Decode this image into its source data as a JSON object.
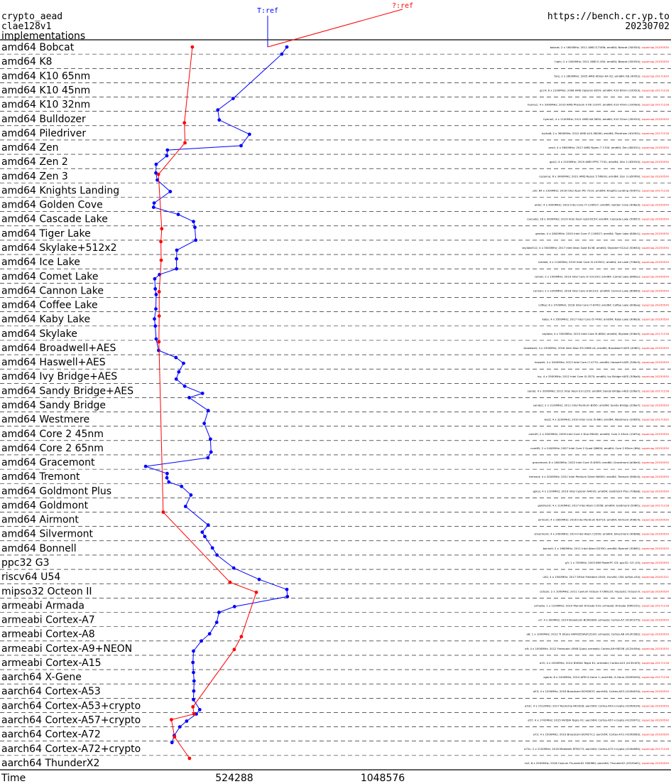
{
  "header": {
    "left_lines": [
      "crypto_aead",
      "clae128v1",
      "implementations"
    ],
    "right_lines": [
      "https://bench.cr.yp.to",
      "20230702"
    ],
    "marker_blue": "T:ref",
    "marker_red": "?:ref"
  },
  "colors": {
    "series_t": "#0000ff",
    "series_q": "#ff0000",
    "grid": "#000000",
    "text": "#000000"
  },
  "chart_data": {
    "type": "line",
    "orientation": "horizontal",
    "xlabel": "Time",
    "xticks": [
      {
        "value": 524288,
        "label": "524288"
      },
      {
        "value": 1048576,
        "label": "1048576"
      }
    ],
    "categories": [
      "amd64 Bobcat",
      "amd64 K8",
      "amd64 K10 65nm",
      "amd64 K10 45nm",
      "amd64 K10 32nm",
      "amd64 Bulldozer",
      "amd64 Piledriver",
      "amd64 Zen",
      "amd64 Zen 2",
      "amd64 Zen 3",
      "amd64 Knights Landing",
      "amd64 Golden Cove",
      "amd64 Cascade Lake",
      "amd64 Tiger Lake",
      "amd64 Skylake+512x2",
      "amd64 Ice Lake",
      "amd64 Comet Lake",
      "amd64 Cannon Lake",
      "amd64 Coffee Lake",
      "amd64 Kaby Lake",
      "amd64 Skylake",
      "amd64 Broadwell+AES",
      "amd64 Haswell+AES",
      "amd64 Ivy Bridge+AES",
      "amd64 Sandy Bridge+AES",
      "amd64 Sandy Bridge",
      "amd64 Westmere",
      "amd64 Core 2 45nm",
      "amd64 Core 2 65nm",
      "amd64 Gracemont",
      "amd64 Tremont",
      "amd64 Goldmont Plus",
      "amd64 Goldmont",
      "amd64 Airmont",
      "amd64 Silvermont",
      "amd64 Bonnell",
      "ppc32 G3",
      "riscv64 U54",
      "mipso32 Octeon II",
      "armeabi Armada",
      "armeabi Cortex-A7",
      "armeabi Cortex-A8",
      "armeabi Cortex-A9+NEON",
      "armeabi Cortex-A15",
      "aarch64 X-Gene",
      "aarch64 Cortex-A53",
      "aarch64 Cortex-A53+crypto",
      "aarch64 Cortex-A57+crypto",
      "aarch64 Cortex-A72",
      "aarch64 Cortex-A72+crypto",
      "aarch64 ThunderX2"
    ],
    "series": [
      {
        "name": "T:ref",
        "color": "#0000ff",
        "points": [
          [
            0,
            0.0,
            710000
          ],
          [
            0.5,
            0.0,
            692000
          ],
          [
            3.5,
            0.1,
            520000
          ],
          [
            4.4,
            0.0,
            466000
          ],
          [
            5.1,
            0.0,
            471000
          ],
          [
            5.9,
            0.2,
            578000
          ],
          [
            6.9,
            0.0,
            548000
          ],
          [
            7.2,
            0.0,
            288000
          ],
          [
            7.6,
            0.0,
            286000
          ],
          [
            8.2,
            0.0,
            248000
          ],
          [
            8.8,
            0.0,
            247000
          ],
          [
            9.3,
            0.0,
            252000
          ],
          [
            10.1,
            0.0,
            298000
          ],
          [
            10.9,
            0.0,
            241000
          ],
          [
            11.2,
            0.0,
            239000
          ],
          [
            11.7,
            0.0,
            326000
          ],
          [
            12.2,
            0.0,
            380000
          ],
          [
            12.6,
            0.0,
            385000
          ],
          [
            13.5,
            0.0,
            388000
          ],
          [
            14.2,
            0.0,
            321000
          ],
          [
            14.8,
            0.0,
            320000
          ],
          [
            15.5,
            0.0,
            320000
          ],
          [
            15.9,
            0.0,
            260000
          ],
          [
            16.2,
            0.0,
            243000
          ],
          [
            16.9,
            0.0,
            245000
          ],
          [
            17.3,
            0.0,
            248000
          ],
          [
            18.3,
            0.0,
            247000
          ],
          [
            19.0,
            0.0,
            242000
          ],
          [
            19.5,
            0.0,
            245000
          ],
          [
            20.4,
            0.0,
            248000
          ],
          [
            21.2,
            0.0,
            257000
          ],
          [
            21.7,
            0.0,
            318000
          ],
          [
            22.1,
            0.0,
            345000
          ],
          [
            22.7,
            0.0,
            328000
          ],
          [
            23.2,
            0.0,
            319000
          ],
          [
            23.7,
            0.0,
            349000
          ],
          [
            24.2,
            0.0,
            412000
          ],
          [
            24.5,
            0.0,
            365000
          ],
          [
            25.4,
            0.0,
            432000
          ],
          [
            26.3,
            0.0,
            418000
          ],
          [
            27.4,
            0.0,
            440000
          ],
          [
            28.3,
            0.0,
            442000
          ],
          [
            28.7,
            0.0,
            431000
          ],
          [
            29.3,
            0.0,
            211000
          ],
          [
            29.8,
            0.0,
            287000
          ],
          [
            30.1,
            0.0,
            286000
          ],
          [
            30.4,
            0.0,
            293000
          ],
          [
            30.7,
            0.0,
            338000
          ],
          [
            31.3,
            0.0,
            371000
          ],
          [
            32.1,
            0.0,
            352000
          ],
          [
            33.4,
            0.0,
            432000
          ],
          [
            33.9,
            0.0,
            411000
          ],
          [
            34.2,
            0.0,
            420000
          ],
          [
            35.0,
            0.0,
            447000
          ],
          [
            35.5,
            0.0,
            463000
          ],
          [
            36.4,
            0.0,
            522000
          ],
          [
            37.2,
            0.0,
            612000
          ],
          [
            37.9,
            0.0,
            710000
          ],
          [
            38.4,
            0.0,
            712000
          ],
          [
            39.1,
            0.0,
            525000
          ],
          [
            39.5,
            0.0,
            470000
          ],
          [
            40.2,
            0.0,
            462000
          ],
          [
            41.0,
            0.0,
            437000
          ],
          [
            41.5,
            0.0,
            408000
          ],
          [
            42.2,
            0.0,
            380000
          ],
          [
            43.0,
            0.0,
            378000
          ],
          [
            43.7,
            0.0,
            380000
          ],
          [
            44.3,
            0.0,
            382000
          ],
          [
            45.0,
            0.0,
            381000
          ],
          [
            45.6,
            0.0,
            380000
          ],
          [
            46.3,
            0.0,
            402000
          ],
          [
            46.6,
            0.0,
            390000
          ],
          [
            47.1,
            0.0,
            356000
          ],
          [
            47.5,
            0.0,
            332000
          ],
          [
            48.1,
            0.0,
            312000
          ],
          [
            48.6,
            0.0,
            304000
          ]
        ]
      },
      {
        "name": "?:ref",
        "color": "#ff0000",
        "points": [
          [
            0,
            0.0,
            376000
          ],
          [
            5.3,
            0.0,
            348000
          ],
          [
            6.7,
            0.0,
            350000
          ],
          [
            8.9,
            0.0,
            256000
          ],
          [
            12.7,
            0.0,
            268000
          ],
          [
            13.6,
            0.0,
            265000
          ],
          [
            14.9,
            0.0,
            266000
          ],
          [
            17.1,
            0.0,
            259000
          ],
          [
            18.8,
            0.0,
            259000
          ],
          [
            20.6,
            0.0,
            258000
          ],
          [
            32.5,
            0.0,
            273000
          ],
          [
            37.4,
            0.0,
            509000
          ],
          [
            38.1,
            0.0,
            602000
          ],
          [
            41.2,
            0.0,
            549000
          ],
          [
            42.1,
            0.0,
            524000
          ],
          [
            46.1,
            0.0,
            378000
          ],
          [
            46.6,
            0.0,
            382000
          ],
          [
            47.0,
            0.0,
            302000
          ],
          [
            48.2,
            0.0,
            313000
          ],
          [
            49.7,
            0.0,
            366000
          ]
        ]
      }
    ],
    "row_notes": [
      "bobcat; 2 x 1600MHz; 2011 AMD G-T40N; amd64; Bobcat (500f20); supercop-20230530",
      "hiphi; 2 x 1000MHz; 2011 AMD E-450; amd64; Bobcat (500f20); supercop-20230530",
      "fore; 2 x 2600MHz; 2005 AMD Athlon 64 X2; amd64; K8 (40f32); supercop-20171020",
      "gcc4; 6 x 2100MHz; 2008 AMD Opteron 8354; amd64; K10 65nm (100f23); supercop-20171218",
      "hyena1; 4 x 3300MHz; 2010 AMD Phenom II X6 1100T; amd64; K10 45nm (100fa0); supercop-20171218",
      "hyena2; 4 x 1100MHz; 2011 AMD A6-3650; amd64; K10 32nm (300f10); supercop-20230530",
      "hydra8; 2 x 3600MHz; 2012 AMD A10-5800K; amd64; Piledriver (610f01); supercop-20171218",
      "zen4; 4 x 3600MHz; 2017 AMD Ryzen 7 1700; amd64; Zen (800f11); supercop-20230530",
      "gpu2; 4 x 2100MHz; 2019 AMD EPYC 7742; amd64; Zen 2 (830f10); supercop-20230530",
      "cezanne; 6 x 3400MHz; 2021 AMD Ryzen 5 5600G; amd64; Zen 3 (a50f00); supercop-20230530",
      "phi; 64 x 1300MHz; 2016 Intel Xeon Phi 7210; amd64; Knights Landing (50671); supercop-20171218",
      "alder; 4 x 3000MHz; 2022 Intel Core i7-1165G7; amd64; Golden Cove (906a3); supercop-20230530",
      "cascade; 18 x 3000MHz; 2019 Intel Xeon Gold 6154; amd64; Cascade Lake (50657); supercop-20230530",
      "gardon; 4 x 2800MHz; 2020 Intel Core i7-1165G7; amd64; Tiger Lake (806c1); supercop-20230530",
      "skylake512; 4 x 3000MHz; 2017 Intel Xeon Gold 6136; amd64; Skylake+512x2 (50654); supercop-20230530",
      "icelake; 4 x 1100MHz; 2019 Intel Core i5-1035G1; amd64; Ice Lake (706e5); supercop-20230530",
      "comet; 2 x 1500MHz; 2019 Intel Core i3-10110U; amd64; Comet Lake (806ec); supercop-20230530",
      "cannon; 2 x 2200MHz; 2018 Intel Core i3-8121U; amd64; Cannon Lake (60663); supercop-20230530",
      "coffee; 6 x 3700MHz; 2018 Intel Core i7-8700; amd64; Coffee Lake (906ea); supercop-20230530",
      "kaby; 4 x 3500MHz; 2017 Intel Core i5-7400; amd64; Kaby Lake (906e9); supercop-20230530",
      "skylake; 4 x 3300MHz; 2015 Intel Core i5-6600; amd64; Skylake (506e3); supercop-20171218",
      "broadwell; 4 x 2300MHz; 2016 Intel Xeon E5-2698 v4; amd64; Broadwell+AES (406f1); supercop-20230530",
      "haswell; 4 x 3400MHz; 2013 Intel Core i7-4770; amd64; Haswell+AES (306c3); supercop-20230530",
      "ivy; 4 x 3500MHz; 2012 Intel Core i5-3570; amd64; Ivy Bridge+AES (306a9); supercop-20230530",
      "sandy; 4 x 3300MHz; 2011 Intel Xeon E3-1220; amd64; Sandy Bridge+AES (206a7); supercop-20171218",
      "sandy2; 2 x 2100MHz; 2011 Intel Pentium B950; amd64; Sandy Bridge (206a7); supercop-20230530",
      "west; 4 x 3200MHz; 2010 Intel Core i5-660; amd64; Westmere (20655); supercop-20171020",
      "core45; 2 x 3000MHz; 2009 Intel Core 2 Duo E8400; amd64; Core 2 45nm (1067a); supercop-20230530",
      "core65; 2 x 2400MHz; 2007 Intel Core 2 Quad Q6600; amd64; Core 2 65nm (6fb); supercop-20230530",
      "gracemont; 8 x 1800MHz; 2022 Intel Core i3-N305; amd64; Gracemont (b06e0); supercop-20230530",
      "tremont; 4 x 2000MHz; 2021 Intel Pentium Silver N6000; amd64; Tremont (906c0); supercop-20230530",
      "gplus; 4 x 1100MHz; 2019 Intel Celeron N4020; amd64; Goldmont Plus (706a8); supercop-20230530",
      "goldmont; 4 x 1100MHz; 2017 Intel Atom C3558; amd64; Goldmont (506f1); supercop-20171218",
      "airmont; 4 x 1600MHz; 2016 Intel Pentium N3710; amd64; Airmont (406c4); supercop-20230530",
      "silvermont; 4 x 2400MHz; 2014 Intel Atom C2550; amd64; Silvermont (406d8); supercop-20230530",
      "bonnell; 2 x 1660MHz; 2011 Intel Atom D2550; amd64; Bonnell (30661); supercop-20230530",
      "g3; 1 x 700MHz; 2003 IBM PowerPC G3; ppc32; G3 (15); supercop-20230530",
      "u54; 4 x 1500MHz; 2017 SiFive Freedom U540; riscv64; U54 (sifive-u54); supercop-20191221",
      "octeon; 2 x 1000MHz; 2011 Cavium Octeon II CN6120; mipso32; Octeon II; supercop-20230530",
      "armada; 1 x 1200MHz; 2010 Marvell Armada 510; armeabi; Armada (56f2251); supercop-20171218",
      "a7; 4 x 900MHz; 2014 Broadcom BCM2836; armeabi; Cortex-A7 (410fc075); supercop-20230530",
      "a8; 1 x 1000MHz; 2012 TI Sitara XAM3359AZCZ100; armeabi; Cortex-A8 (413fc082); supercop-20230530",
      "a9; 4 x 1000MHz; 2012 Freescale i.MX6 Quad; armeabi; Cortex-A9+NEON (412fc09a); supercop-20230530",
      "a15; 4 x 2000MHz; 2014 NVIDIA Tegra K1; armeabi; Cortex-A15 (413fc0f3); supercop-20171218",
      "xgene; 8 x 2400MHz; 2014 APM X-Gene 1; aarch64; X-Gene (500f0000); supercop-20171218",
      "a53; 4 x 1200MHz; 2016 Broadcom BCM2837; aarch64; Cortex-A53 (410fd034); supercop-20230530",
      "a53c; 4 x 1512MHz; 2017 Rockchip RK3328; aarch64; Cortex-A53+crypto (410fd034); supercop-20230530",
      "a57; 4 x 1743MHz; 2015 NVIDIA Tegra X1; aarch64; Cortex-A57+crypto (411fd071); supercop-20230530",
      "a72; 4 x 1500MHz; 2019 Broadcom BCM2711; aarch64; Cortex-A72 (410fd083); supercop-20230530",
      "a72c; 2 x 2100MHz; 2018 Mediatek MT8173; aarch64; Cortex-A72+crypto (410fd080); supercop-20171218",
      "tx2; 8 x 2500MHz; 2018 Cavium ThunderX2 CN9980; aarch64; ThunderX2 (431f0af1); supercop-20230530"
    ]
  }
}
